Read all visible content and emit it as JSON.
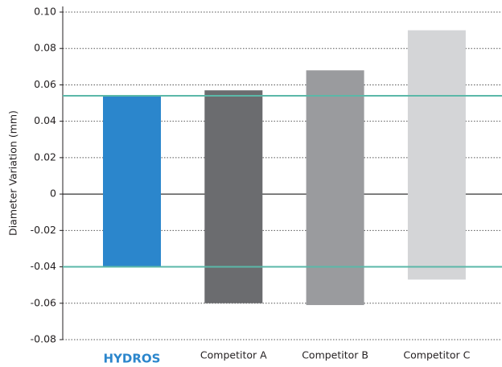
{
  "chart_data": {
    "type": "range_bar",
    "y_label": "Diameter Variation (mm)",
    "categories": [
      "HYDROS",
      "Competitor A",
      "Competitor B",
      "Competitor C"
    ],
    "low": [
      -0.04,
      -0.06,
      -0.061,
      -0.047
    ],
    "high": [
      0.054,
      0.057,
      0.068,
      0.09
    ],
    "colors": [
      "#2b86cc",
      "#6b6c6f",
      "#9a9b9e",
      "#d4d5d7"
    ],
    "reference_lines": [
      0.054,
      -0.04
    ],
    "reference_color": "#5bb8a8",
    "ylim": [
      -0.08,
      0.1
    ],
    "yticks": [
      {
        "value": 0.1,
        "label": "0.10"
      },
      0.08,
      0.06,
      0.04,
      0.02,
      0,
      -0.02,
      -0.04,
      -0.06,
      -0.08
    ],
    "grid": true
  }
}
